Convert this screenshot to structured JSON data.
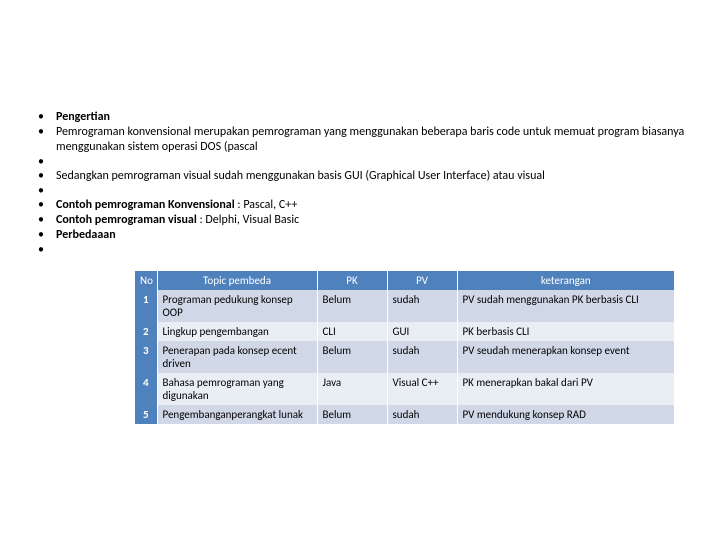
{
  "bullets": {
    "b0": "Pengertian",
    "b1": "Pemrograman konvensional merupakan pemrograman yang menggunakan beberapa baris code untuk memuat program biasanya menggunakan sistem operasi DOS (pascal",
    "b2": "",
    "b3": "Sedangkan pemrograman visual sudah menggunakan basis GUI (Graphical User Interface) atau visual",
    "b4": "",
    "b5_a": "Contoh pemrograman Konvensional",
    "b5_b": " : Pascal, C++",
    "b6_a": "Contoh pemrograman visual",
    "b6_b": " : Delphi, Visual Basic",
    "b7": "Perbedaaan",
    "b8": ""
  },
  "table": {
    "columns": [
      "No",
      "Topic pembeda",
      "PK",
      "PV",
      "keterangan"
    ],
    "header_bg": "#4f81bd",
    "header_fg": "#ffffff",
    "band_a": "#d0d8e8",
    "band_b": "#e9edf4",
    "rows": [
      {
        "no": "1",
        "topic": "Programan pedukung konsep OOP",
        "pk": "Belum",
        "pv": "sudah",
        "ket": "PV sudah menggunakan PK berbasis CLI"
      },
      {
        "no": "2",
        "topic": "Lingkup pengembangan",
        "pk": "CLI",
        "pv": "GUI",
        "ket": "PK berbasis CLI"
      },
      {
        "no": "3",
        "topic": "Penerapan pada konsep ecent driven",
        "pk": "Belum",
        "pv": "sudah",
        "ket": "PV seudah menerapkan konsep event"
      },
      {
        "no": "4",
        "topic": "Bahasa pemrograman yang digunakan",
        "pk": "Java",
        "pv": "Visual C++",
        "ket": "PK menerapkan bakal dari PV"
      },
      {
        "no": "5",
        "topic": "Pengembanganperangkat lunak",
        "pk": "Belum",
        "pv": "sudah",
        "ket": "PV mendukung konsep RAD"
      }
    ]
  }
}
